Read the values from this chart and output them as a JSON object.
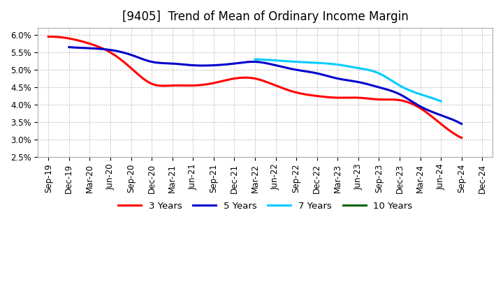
{
  "title": "[9405]  Trend of Mean of Ordinary Income Margin",
  "ylim": [
    0.025,
    0.062
  ],
  "yticks": [
    0.025,
    0.03,
    0.035,
    0.04,
    0.045,
    0.05,
    0.055,
    0.06
  ],
  "ytick_labels": [
    "2.5%",
    "3.0%",
    "3.5%",
    "4.0%",
    "4.5%",
    "5.0%",
    "5.5%",
    "6.0%"
  ],
  "x_labels": [
    "Sep-19",
    "Dec-19",
    "Mar-20",
    "Jun-20",
    "Sep-20",
    "Dec-20",
    "Mar-21",
    "Jun-21",
    "Sep-21",
    "Dec-21",
    "Mar-22",
    "Jun-22",
    "Sep-22",
    "Dec-22",
    "Mar-23",
    "Jun-23",
    "Sep-23",
    "Dec-23",
    "Mar-24",
    "Jun-24",
    "Sep-24",
    "Dec-24"
  ],
  "series_3y": [
    0.0595,
    0.059,
    0.0575,
    0.055,
    0.0505,
    0.046,
    0.0455,
    0.0455,
    0.0462,
    0.0475,
    0.0475,
    0.0455,
    0.0435,
    0.0425,
    0.042,
    0.042,
    0.0415,
    0.0413,
    0.039,
    0.0345,
    0.0305,
    null
  ],
  "series_5y": [
    null,
    0.0565,
    0.0562,
    0.0557,
    0.0543,
    0.0523,
    0.0518,
    0.0513,
    0.0513,
    0.0518,
    0.0523,
    0.0513,
    0.05,
    0.049,
    0.0475,
    0.0465,
    0.045,
    0.043,
    0.0395,
    0.037,
    0.0345,
    null
  ],
  "series_7y": [
    null,
    null,
    null,
    null,
    null,
    null,
    null,
    null,
    null,
    null,
    0.053,
    0.0527,
    0.0523,
    0.052,
    0.0515,
    0.0505,
    0.049,
    0.0455,
    0.043,
    0.041,
    null,
    null
  ],
  "series_10y": [],
  "color_3y": "#ff0000",
  "color_5y": "#0000cc",
  "color_7y": "#00ccff",
  "color_10y": "#006600",
  "linewidth": 2.2,
  "background_color": "#ffffff",
  "plot_bg_color": "#ffffff",
  "grid_color": "#aaaaaa",
  "title_fontsize": 12,
  "tick_fontsize": 8.5,
  "legend_fontsize": 9.5
}
